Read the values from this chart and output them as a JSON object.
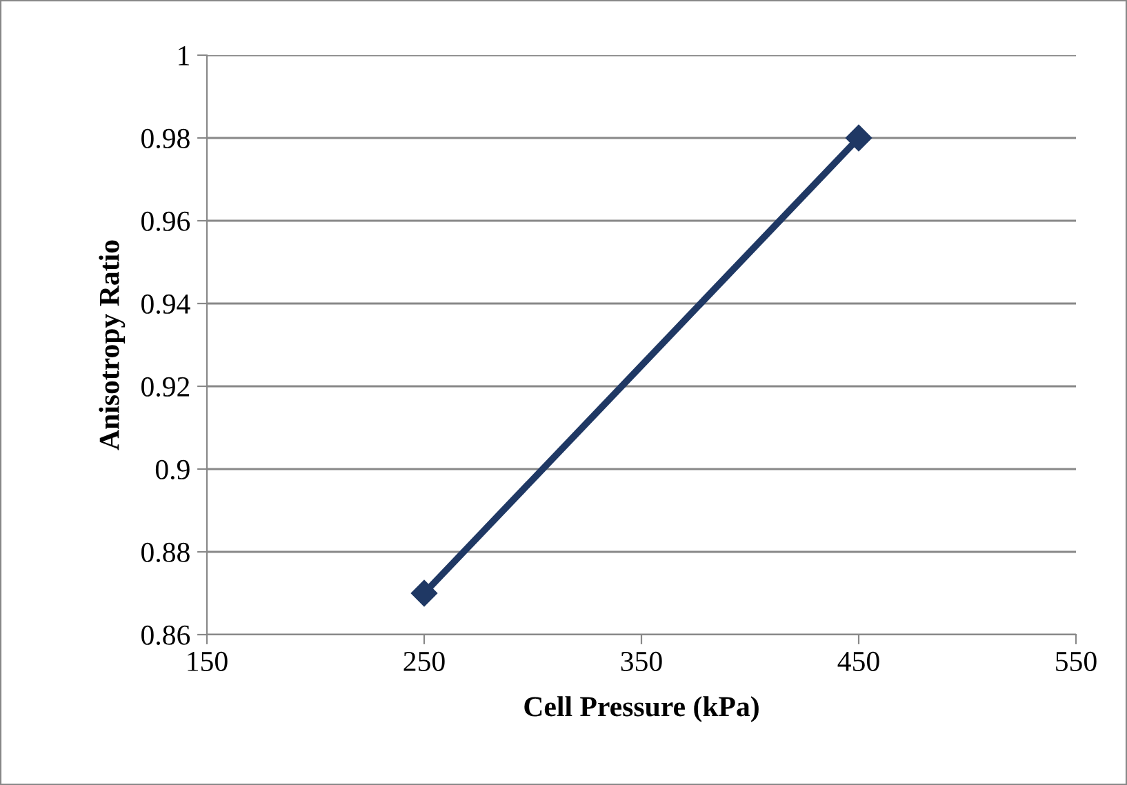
{
  "chart_data": {
    "type": "line",
    "xlabel": "Cell Pressure (kPa)",
    "ylabel": "Anisotropy Ratio",
    "series": [
      {
        "color": "#1f3864",
        "x": [
          250,
          450
        ],
        "values": [
          0.87,
          0.98
        ]
      }
    ],
    "xlim": [
      150,
      550
    ],
    "xticks": [
      150,
      250,
      350,
      450,
      550
    ],
    "ylim": [
      0.86,
      1
    ],
    "yticks": [
      0.86,
      0.88,
      0.9,
      0.92,
      0.94,
      0.96,
      0.98,
      1
    ],
    "grid": "y",
    "marker": "diamond",
    "line_style": "solid"
  }
}
